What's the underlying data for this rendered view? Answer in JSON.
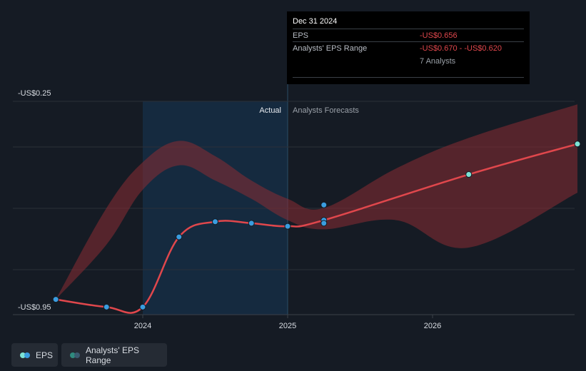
{
  "colors": {
    "background": "#151b24",
    "line": "#e0474c",
    "actual_dot": "#3a9de0",
    "forecast_dot": "#7de3d5",
    "range_fill": "#8a2b33",
    "past_band": "#163048",
    "legend_bg": "#252b34"
  },
  "tooltip": {
    "date": "Dec 31 2024",
    "rows": [
      {
        "label": "EPS",
        "value": "-US$0.656"
      },
      {
        "label": "Analysts' EPS Range",
        "value": "-US$0.670 - -US$0.620"
      },
      {
        "label": "",
        "value": "7 Analysts"
      }
    ]
  },
  "legend": {
    "eps_label": "EPS",
    "range_label": "Analysts' EPS Range"
  },
  "chart_data": {
    "type": "line",
    "y_top_label": "-US$0.25",
    "y_bottom_label": "-US$0.95",
    "ylim": [
      -0.95,
      -0.25
    ],
    "xlim": [
      2023.26,
      2027.0
    ],
    "x_ticks": [
      {
        "value": 2024,
        "label": "2024"
      },
      {
        "value": 2025,
        "label": "2025"
      },
      {
        "value": 2026,
        "label": "2026"
      }
    ],
    "section_labels": {
      "actual": "Actual",
      "forecast": "Analysts Forecasts"
    },
    "actual_start": 2024.0,
    "divider": 2025.0,
    "grid": true,
    "series": [
      {
        "name": "EPS",
        "actual": [
          {
            "x": 2023.4,
            "y": -0.9
          },
          {
            "x": 2023.75,
            "y": -0.925
          },
          {
            "x": 2024.0,
            "y": -0.925
          },
          {
            "x": 2024.25,
            "y": -0.695
          },
          {
            "x": 2024.5,
            "y": -0.645
          },
          {
            "x": 2024.75,
            "y": -0.65
          },
          {
            "x": 2025.0,
            "y": -0.66
          },
          {
            "x": 2025.25,
            "y": -0.64
          }
        ],
        "forecast": [
          {
            "x": 2025.25,
            "y": -0.64
          },
          {
            "x": 2026.25,
            "y": -0.49
          },
          {
            "x": 2027.0,
            "y": -0.39
          }
        ]
      }
    ],
    "extra_points": [
      {
        "x": 2025.25,
        "y": -0.59
      },
      {
        "x": 2025.25,
        "y": -0.65
      }
    ],
    "range_band": {
      "name": "Analysts' EPS Range",
      "upper": [
        {
          "x": 2023.4,
          "y": -0.9
        },
        {
          "x": 2023.75,
          "y": -0.6
        },
        {
          "x": 2024.0,
          "y": -0.45
        },
        {
          "x": 2024.25,
          "y": -0.38
        },
        {
          "x": 2024.5,
          "y": -0.43
        },
        {
          "x": 2024.75,
          "y": -0.51
        },
        {
          "x": 2025.0,
          "y": -0.57
        },
        {
          "x": 2025.25,
          "y": -0.6
        },
        {
          "x": 2025.75,
          "y": -0.47
        },
        {
          "x": 2026.25,
          "y": -0.37
        },
        {
          "x": 2027.0,
          "y": -0.26
        }
      ],
      "lower": [
        {
          "x": 2027.0,
          "y": -0.55
        },
        {
          "x": 2026.25,
          "y": -0.73
        },
        {
          "x": 2025.75,
          "y": -0.64
        },
        {
          "x": 2025.25,
          "y": -0.67
        },
        {
          "x": 2025.0,
          "y": -0.64
        },
        {
          "x": 2024.75,
          "y": -0.57
        },
        {
          "x": 2024.5,
          "y": -0.51
        },
        {
          "x": 2024.25,
          "y": -0.46
        },
        {
          "x": 2024.0,
          "y": -0.54
        },
        {
          "x": 2023.75,
          "y": -0.72
        },
        {
          "x": 2023.4,
          "y": -0.9
        }
      ]
    }
  }
}
